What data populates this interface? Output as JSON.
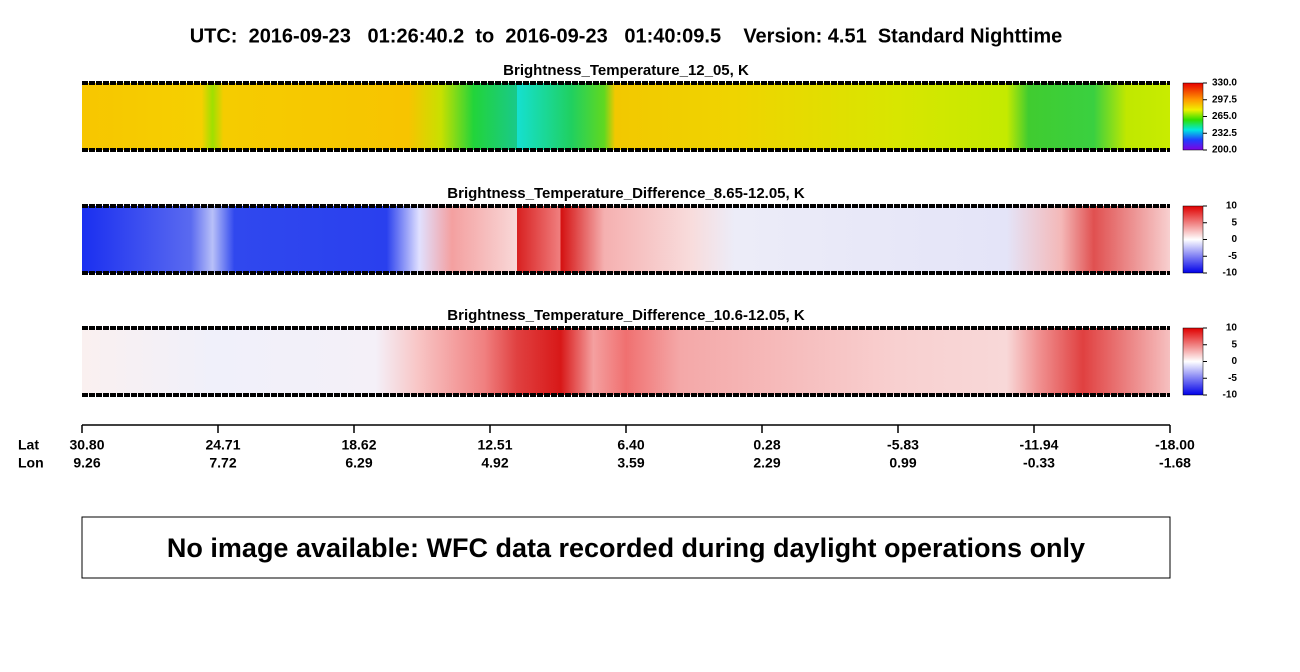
{
  "header": {
    "title": "UTC:  2016-09-23   01:26:40.2  to  2016-09-23   01:40:09.5    Version: 4.51  Standard Nighttime"
  },
  "panels": [
    {
      "title": "Brightness_Temperature_12_05, K",
      "colorbar_ticks": [
        "330.0",
        "297.5",
        "265.0",
        "232.5",
        "200.0"
      ]
    },
    {
      "title": "Brightness_Temperature_Difference_8.65-12.05, K",
      "colorbar_ticks": [
        "10",
        "5",
        "0",
        "-5",
        "-10"
      ]
    },
    {
      "title": "Brightness_Temperature_Difference_10.6-12.05, K",
      "colorbar_ticks": [
        "10",
        "5",
        "0",
        "-5",
        "-10"
      ]
    }
  ],
  "axis": {
    "row_labels": [
      "Lat",
      "Lon"
    ],
    "ticks": [
      {
        "lat": "30.80",
        "lon": "9.26"
      },
      {
        "lat": "24.71",
        "lon": "7.72"
      },
      {
        "lat": "18.62",
        "lon": "6.29"
      },
      {
        "lat": "12.51",
        "lon": "4.92"
      },
      {
        "lat": "6.40",
        "lon": "3.59"
      },
      {
        "lat": "0.28",
        "lon": "2.29"
      },
      {
        "lat": "-5.83",
        "lon": "0.99"
      },
      {
        "lat": "-11.94",
        "lon": "-0.33"
      },
      {
        "lat": "-18.00",
        "lon": "-1.68"
      }
    ]
  },
  "message": "No image available: WFC data recorded during daylight operations only"
}
